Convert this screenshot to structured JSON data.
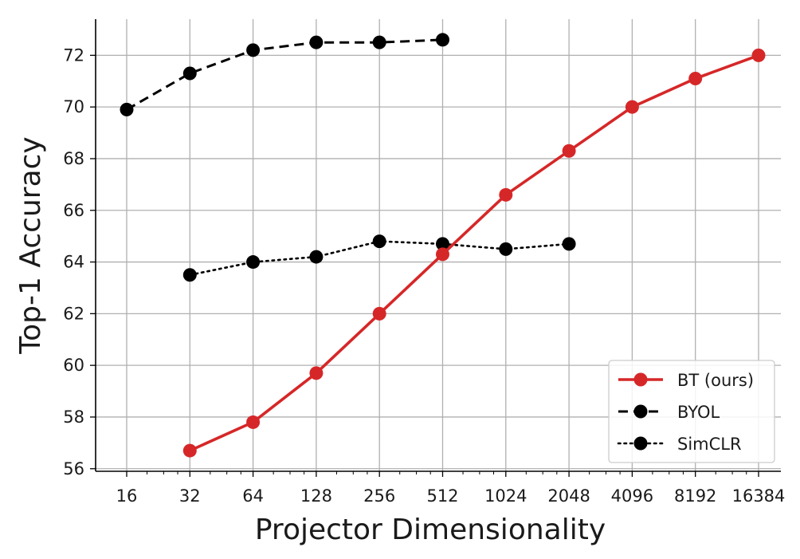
{
  "chart_data": {
    "type": "line",
    "title": "",
    "xlabel": "Projector Dimensionality",
    "ylabel": "Top-1 Accuracy",
    "x_scale": "log2",
    "categories": [
      "16",
      "32",
      "64",
      "128",
      "256",
      "512",
      "1024",
      "2048",
      "4096",
      "8192",
      "16384"
    ],
    "x": [
      16,
      32,
      64,
      128,
      256,
      512,
      1024,
      2048,
      4096,
      8192,
      16384
    ],
    "yticks": [
      "56",
      "58",
      "60",
      "62",
      "64",
      "66",
      "68",
      "70",
      "72"
    ],
    "ylim": [
      55.9,
      73.4
    ],
    "grid": true,
    "legend_position": "lower-right",
    "series": [
      {
        "name": "BT (ours)",
        "color": "#d62728",
        "style": "solid",
        "x": [
          32,
          64,
          128,
          256,
          512,
          1024,
          2048,
          4096,
          8192,
          16384
        ],
        "values": [
          56.7,
          57.8,
          59.7,
          62.0,
          64.3,
          66.6,
          68.3,
          70.0,
          71.1,
          72.0
        ]
      },
      {
        "name": "BYOL",
        "color": "#000000",
        "style": "dashed",
        "x": [
          16,
          32,
          64,
          128,
          256,
          512
        ],
        "values": [
          69.9,
          71.3,
          72.2,
          72.5,
          72.5,
          72.6
        ]
      },
      {
        "name": "SimCLR",
        "color": "#000000",
        "style": "dotted",
        "x": [
          32,
          64,
          128,
          256,
          512,
          1024,
          2048
        ],
        "values": [
          63.5,
          64.0,
          64.2,
          64.8,
          64.7,
          64.5,
          64.7
        ]
      }
    ]
  }
}
